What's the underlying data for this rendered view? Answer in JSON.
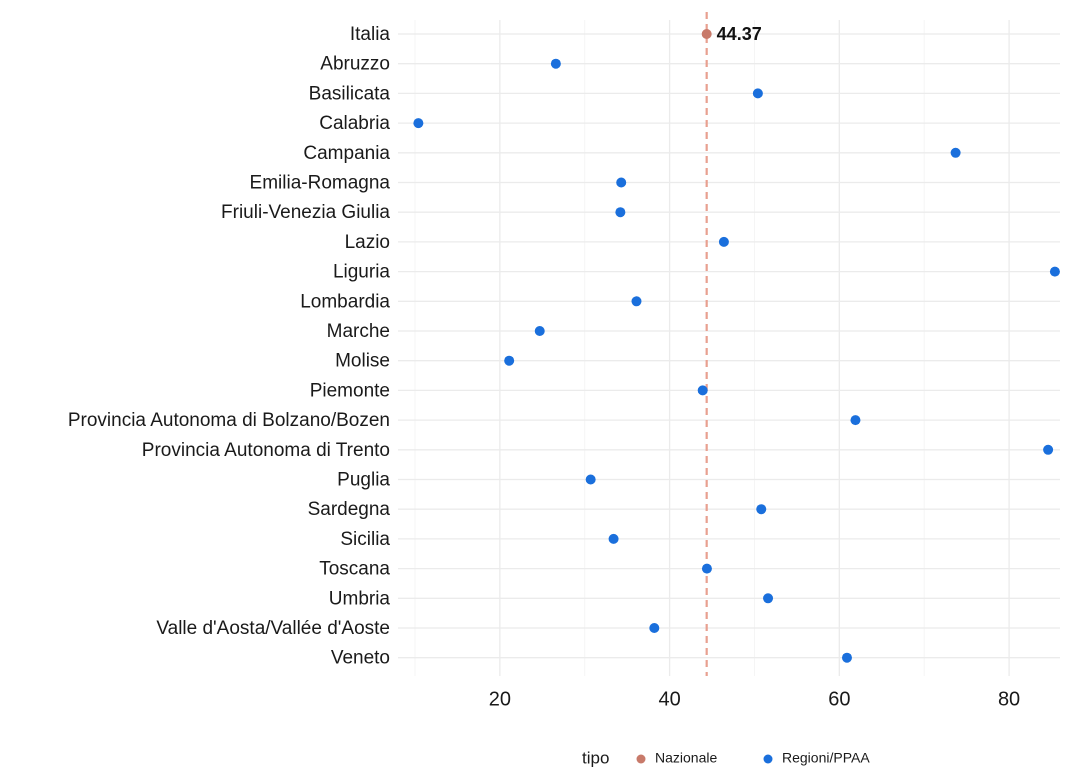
{
  "chart_data": {
    "type": "scatter",
    "orientation": "horizontal-dot",
    "xlim": [
      8,
      86
    ],
    "x_ticks": [
      20,
      40,
      60,
      80
    ],
    "grid": true,
    "legend_position": "bottom",
    "legend": {
      "title": "tipo",
      "entries": [
        {
          "key": "Nazionale",
          "label": "Nazionale",
          "color": "#c87a6a"
        },
        {
          "key": "Regioni/PPAA",
          "label": "Regioni/PPAA",
          "color": "#1a6fdc"
        }
      ]
    },
    "reference": {
      "value": 44.37,
      "label": "44.37",
      "color": "#e8a090",
      "line_style": "dashed"
    },
    "categories": [
      "Italia",
      "Abruzzo",
      "Basilicata",
      "Calabria",
      "Campania",
      "Emilia-Romagna",
      "Friuli-Venezia Giulia",
      "Lazio",
      "Liguria",
      "Lombardia",
      "Marche",
      "Molise",
      "Piemonte",
      "Provincia Autonoma di Bolzano/Bozen",
      "Provincia Autonoma di Trento",
      "Puglia",
      "Sardegna",
      "Sicilia",
      "Toscana",
      "Umbria",
      "Valle d'Aosta/Vallée d'Aoste",
      "Veneto"
    ],
    "values": [
      44.37,
      26.6,
      50.4,
      10.4,
      73.7,
      34.3,
      34.2,
      46.4,
      85.4,
      36.1,
      24.7,
      21.1,
      43.9,
      61.9,
      84.6,
      30.7,
      50.8,
      33.4,
      44.4,
      51.6,
      38.2,
      60.9
    ],
    "tipo": [
      "Nazionale",
      "Regioni/PPAA",
      "Regioni/PPAA",
      "Regioni/PPAA",
      "Regioni/PPAA",
      "Regioni/PPAA",
      "Regioni/PPAA",
      "Regioni/PPAA",
      "Regioni/PPAA",
      "Regioni/PPAA",
      "Regioni/PPAA",
      "Regioni/PPAA",
      "Regioni/PPAA",
      "Regioni/PPAA",
      "Regioni/PPAA",
      "Regioni/PPAA",
      "Regioni/PPAA",
      "Regioni/PPAA",
      "Regioni/PPAA",
      "Regioni/PPAA",
      "Regioni/PPAA",
      "Regioni/PPAA"
    ],
    "colors": {
      "grid_major": "#ebebeb",
      "grid_minor": "#f5f5f5"
    }
  }
}
